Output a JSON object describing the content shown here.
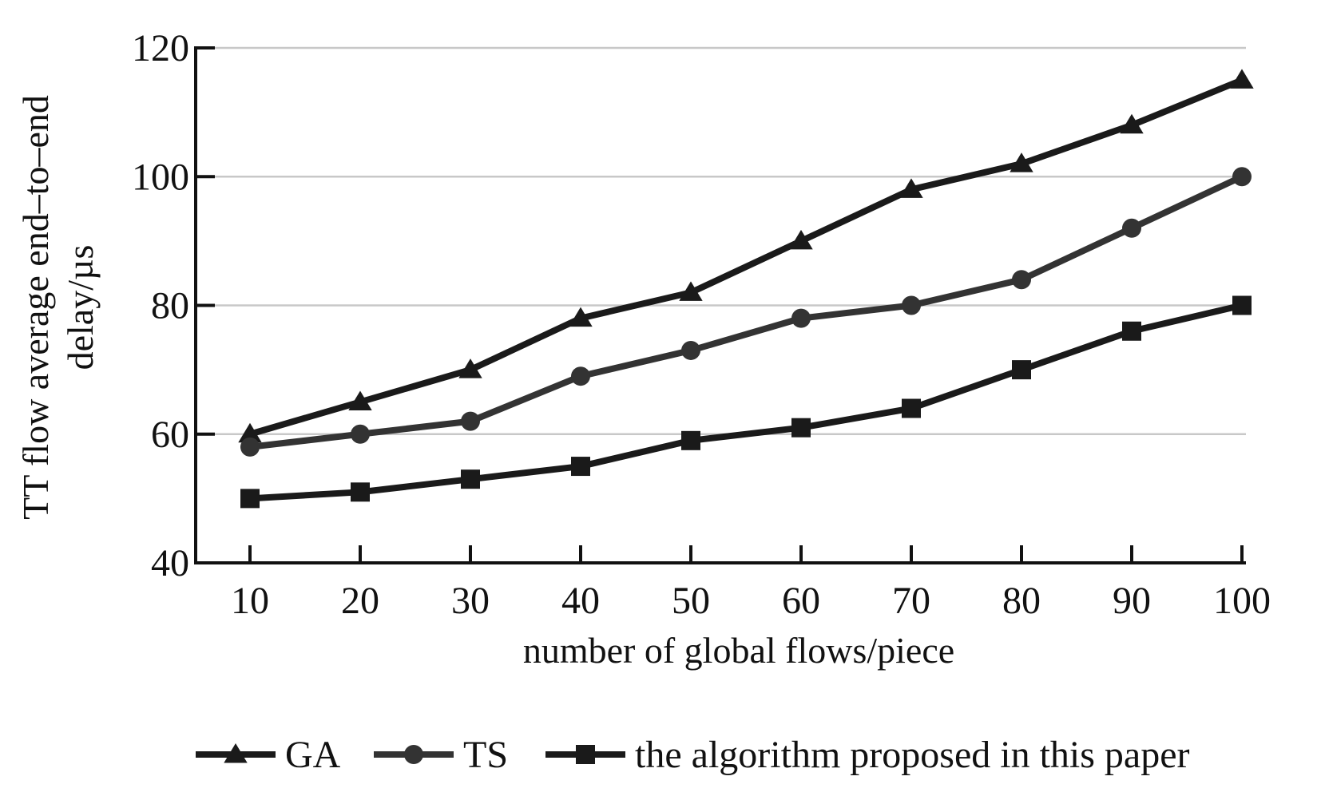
{
  "chart_data": {
    "type": "line",
    "xlabel": "number of global flows/piece",
    "ylabel_lines": [
      "TT flow average end–to–end",
      "delay/µs"
    ],
    "categories": [
      10,
      20,
      30,
      40,
      50,
      60,
      70,
      80,
      90,
      100
    ],
    "ylim": [
      40,
      120
    ],
    "yticks": [
      40,
      60,
      80,
      100,
      120
    ],
    "grid": "horizontal",
    "legend_position": "bottom",
    "series": [
      {
        "name": "GA",
        "marker": "triangle",
        "color": "#1a1a1a",
        "values": [
          60,
          65,
          70,
          78,
          82,
          90,
          98,
          102,
          108,
          115
        ]
      },
      {
        "name": "TS",
        "marker": "circle",
        "color": "#333333",
        "values": [
          58,
          60,
          62,
          69,
          73,
          78,
          80,
          84,
          92,
          100
        ]
      },
      {
        "name": "the algorithm proposed in this paper",
        "marker": "square",
        "color": "#1a1a1a",
        "values": [
          50,
          51,
          53,
          55,
          59,
          61,
          64,
          70,
          76,
          80
        ]
      }
    ]
  }
}
